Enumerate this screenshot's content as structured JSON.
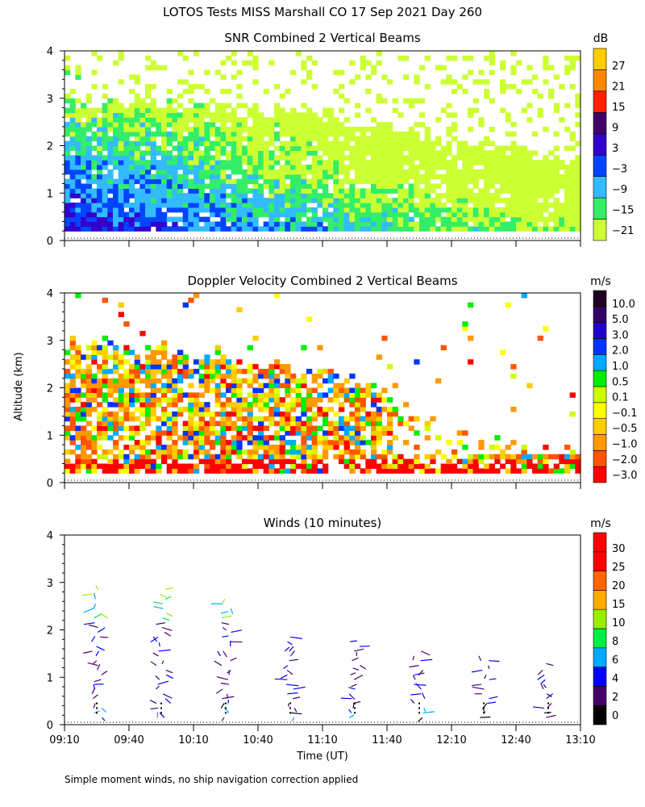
{
  "figure": {
    "title": "LOTOS Tests MISS Marshall CO  17 Sep 2021 Day 260",
    "ylabel": "Altitude (km)",
    "xlabel": "Time (UT)",
    "footnote": "Simple moment winds, no ship navigation correction applied"
  },
  "chart_data": [
    {
      "type": "heatmap",
      "title": "SNR Combined 2 Vertical Beams",
      "colorbar_unit": "dB",
      "colorbar_labels": [
        "27",
        "21",
        "15",
        "9",
        "3",
        "−3",
        "−9",
        "−15",
        "−21"
      ],
      "levels": [
        -21,
        -18,
        -15,
        -12,
        -9,
        -6,
        -3,
        0,
        3,
        6,
        9,
        12,
        15,
        18,
        21,
        24,
        27,
        30
      ],
      "ylim": [
        0,
        4
      ],
      "yticks": [
        "0",
        "1",
        "2",
        "3",
        "4"
      ],
      "time_range_min": [
        0,
        240
      ],
      "profile_top_km": [
        [
          0,
          2.9
        ],
        [
          60,
          2.8
        ],
        [
          120,
          2.6
        ],
        [
          180,
          2.1
        ],
        [
          240,
          1.6
        ]
      ],
      "near_surface_snr_db": [
        [
          0,
          5
        ],
        [
          60,
          0
        ],
        [
          120,
          -6
        ],
        [
          180,
          -12
        ],
        [
          240,
          -15
        ]
      ]
    },
    {
      "type": "heatmap",
      "title": "Doppler Velocity Combined 2 Vertical Beams",
      "colorbar_unit": "m/s",
      "colorbar_labels": [
        "10.0",
        "5.0",
        "3.0",
        "2.0",
        "1.0",
        "0.5",
        "0.1",
        "−0.1",
        "−0.5",
        "−1.0",
        "−2.0",
        "−3.0"
      ],
      "levels": [
        -3.0,
        -2.0,
        -1.0,
        -0.5,
        -0.1,
        0.1,
        0.5,
        1.0,
        2.0,
        3.0,
        5.0,
        10.0
      ],
      "ylim": [
        0,
        4
      ],
      "yticks": [
        "0",
        "1",
        "2",
        "3",
        "4"
      ],
      "time_range_min": [
        0,
        240
      ],
      "profile_top_km": [
        [
          0,
          2.9
        ],
        [
          80,
          2.6
        ],
        [
          150,
          2.0
        ],
        [
          180,
          1.0
        ],
        [
          240,
          0.6
        ]
      ]
    },
    {
      "type": "scatter",
      "title": "Winds (10 minutes)",
      "colorbar_unit": "m/s",
      "colorbar_labels": [
        "30",
        "25",
        "20",
        "15",
        "10",
        "8",
        "6",
        "4",
        "2",
        "0"
      ],
      "levels": [
        0,
        2,
        4,
        6,
        8,
        10,
        15,
        20,
        25,
        30,
        35
      ],
      "ylim": [
        0,
        4
      ],
      "yticks": [
        "0",
        "1",
        "2",
        "3",
        "4"
      ],
      "xticks": [
        "09:10",
        "09:40",
        "10:10",
        "10:40",
        "11:10",
        "11:40",
        "12:10",
        "12:40",
        "13:10"
      ],
      "xlim_min": [
        0,
        240
      ],
      "profiles": [
        {
          "time_min": 15,
          "top_km": 2.9
        },
        {
          "time_min": 45,
          "top_km": 2.9
        },
        {
          "time_min": 75,
          "top_km": 2.7
        },
        {
          "time_min": 105,
          "top_km": 1.9
        },
        {
          "time_min": 135,
          "top_km": 1.8
        },
        {
          "time_min": 165,
          "top_km": 1.6
        },
        {
          "time_min": 195,
          "top_km": 1.5
        },
        {
          "time_min": 225,
          "top_km": 1.3
        }
      ]
    }
  ]
}
